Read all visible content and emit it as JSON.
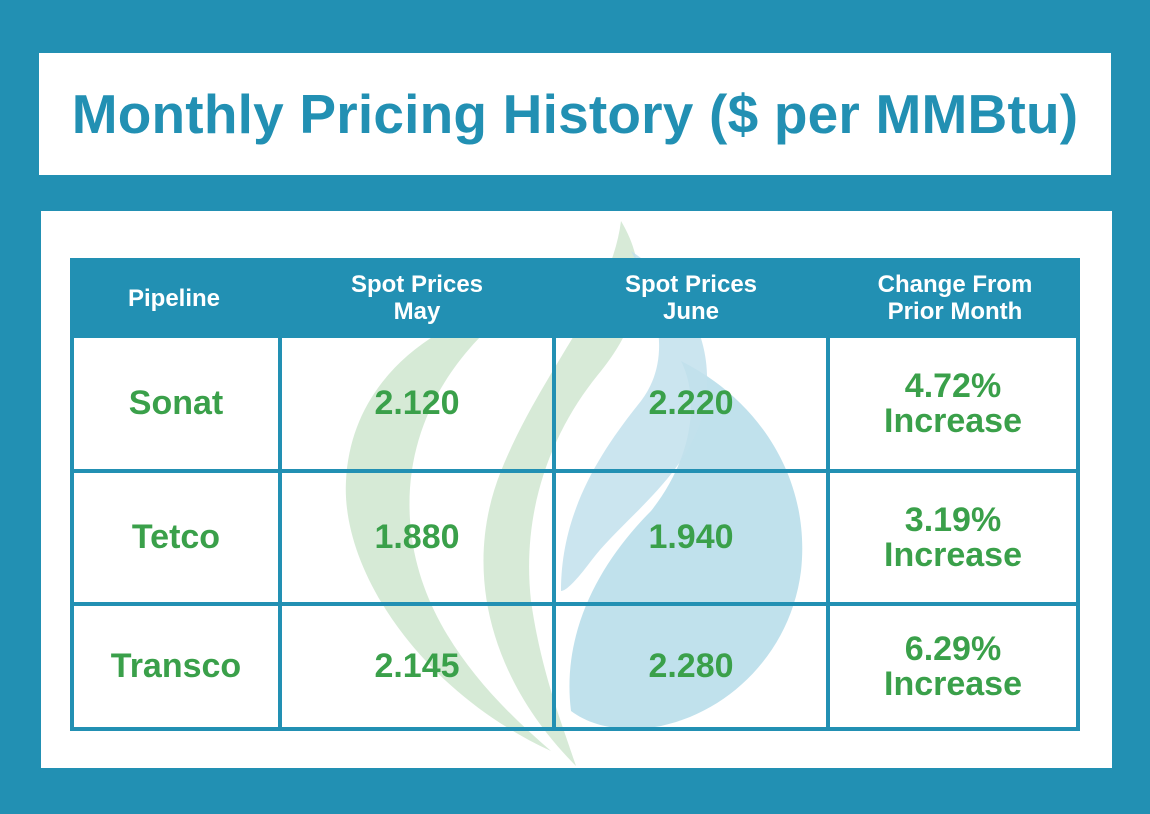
{
  "title": "Monthly Pricing History ($ per MMBtu)",
  "colors": {
    "background": "#2290b3",
    "header": "#2290b3",
    "value_text": "#3aa04a",
    "leaf_green": "#cfe6cf",
    "leaf_blue": "#b5dce9"
  },
  "table": {
    "headers": {
      "pipeline": "Pipeline",
      "may_line1": "Spot Prices",
      "may_line2": "May",
      "june_line1": "Spot Prices",
      "june_line2": "June",
      "change_line1": "Change From",
      "change_line2": "Prior Month"
    },
    "rows": [
      {
        "pipeline": "Sonat",
        "may": "2.120",
        "june": "2.220",
        "change_pct": "4.72%",
        "change_dir": "Increase"
      },
      {
        "pipeline": "Tetco",
        "may": "1.880",
        "june": "1.940",
        "change_pct": "3.19%",
        "change_dir": "Increase"
      },
      {
        "pipeline": "Transco",
        "may": "2.145",
        "june": "2.280",
        "change_pct": "6.29%",
        "change_dir": "Increase"
      }
    ]
  },
  "watermark_icon": "flame-leaf-logo-icon"
}
